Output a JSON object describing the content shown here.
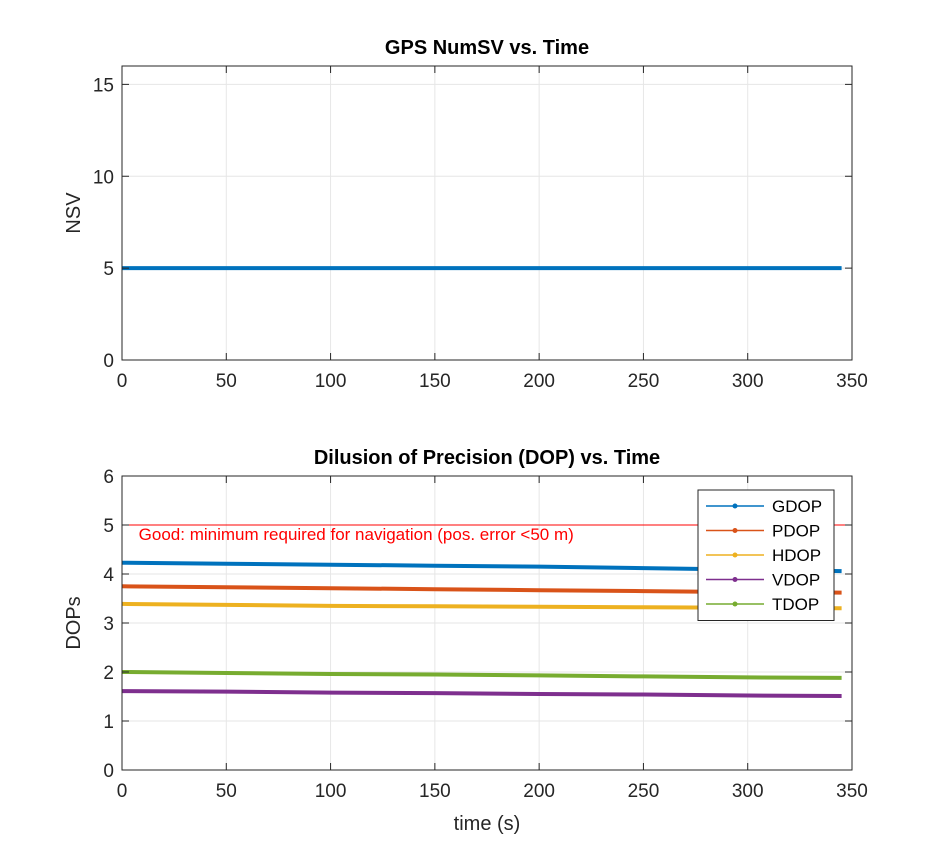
{
  "chart_data": [
    {
      "type": "line",
      "title": "GPS NumSV vs. Time",
      "xlabel": "",
      "ylabel": "NSV",
      "xlim": [
        0,
        350
      ],
      "ylim": [
        0,
        16
      ],
      "xticks": [
        0,
        50,
        100,
        150,
        200,
        250,
        300,
        350
      ],
      "yticks": [
        0,
        5,
        10,
        15
      ],
      "grid": true,
      "series": [
        {
          "color": "#0072BD",
          "x": [
            0,
            345
          ],
          "y": [
            5,
            5
          ]
        }
      ]
    },
    {
      "type": "line",
      "title": "Dilusion of Precision (DOP) vs. Time",
      "xlabel": "time (s)",
      "ylabel": "DOPs",
      "xlim": [
        0,
        350
      ],
      "ylim": [
        0,
        6
      ],
      "xticks": [
        0,
        50,
        100,
        150,
        200,
        250,
        300,
        350
      ],
      "yticks": [
        0,
        1,
        2,
        3,
        4,
        5,
        6
      ],
      "grid": true,
      "legend": "top-right",
      "reference_line": {
        "y": 5,
        "color": "#FF0000"
      },
      "annotation": {
        "text": "Good: minimum required for navigation (pos. error <50 m)",
        "x": 8,
        "y": 4.82,
        "color": "#FF0000"
      },
      "series": [
        {
          "name": "GDOP",
          "color": "#0072BD",
          "x": [
            0,
            50,
            100,
            150,
            200,
            250,
            300,
            345
          ],
          "y": [
            4.23,
            4.21,
            4.19,
            4.17,
            4.15,
            4.12,
            4.09,
            4.06
          ]
        },
        {
          "name": "PDOP",
          "color": "#D95319",
          "x": [
            0,
            50,
            100,
            150,
            200,
            250,
            300,
            345
          ],
          "y": [
            3.75,
            3.73,
            3.71,
            3.69,
            3.67,
            3.65,
            3.63,
            3.62
          ]
        },
        {
          "name": "HDOP",
          "color": "#EDB120",
          "x": [
            0,
            50,
            100,
            150,
            200,
            250,
            300,
            345
          ],
          "y": [
            3.39,
            3.37,
            3.35,
            3.34,
            3.33,
            3.32,
            3.31,
            3.3
          ]
        },
        {
          "name": "VDOP",
          "color": "#7E2F8E",
          "x": [
            0,
            50,
            100,
            150,
            200,
            250,
            300,
            345
          ],
          "y": [
            1.61,
            1.6,
            1.58,
            1.57,
            1.55,
            1.54,
            1.52,
            1.51
          ]
        },
        {
          "name": "TDOP",
          "color": "#77AC30",
          "x": [
            0,
            50,
            100,
            150,
            200,
            250,
            300,
            345
          ],
          "y": [
            2.0,
            1.98,
            1.96,
            1.95,
            1.93,
            1.91,
            1.89,
            1.88
          ]
        }
      ]
    }
  ]
}
